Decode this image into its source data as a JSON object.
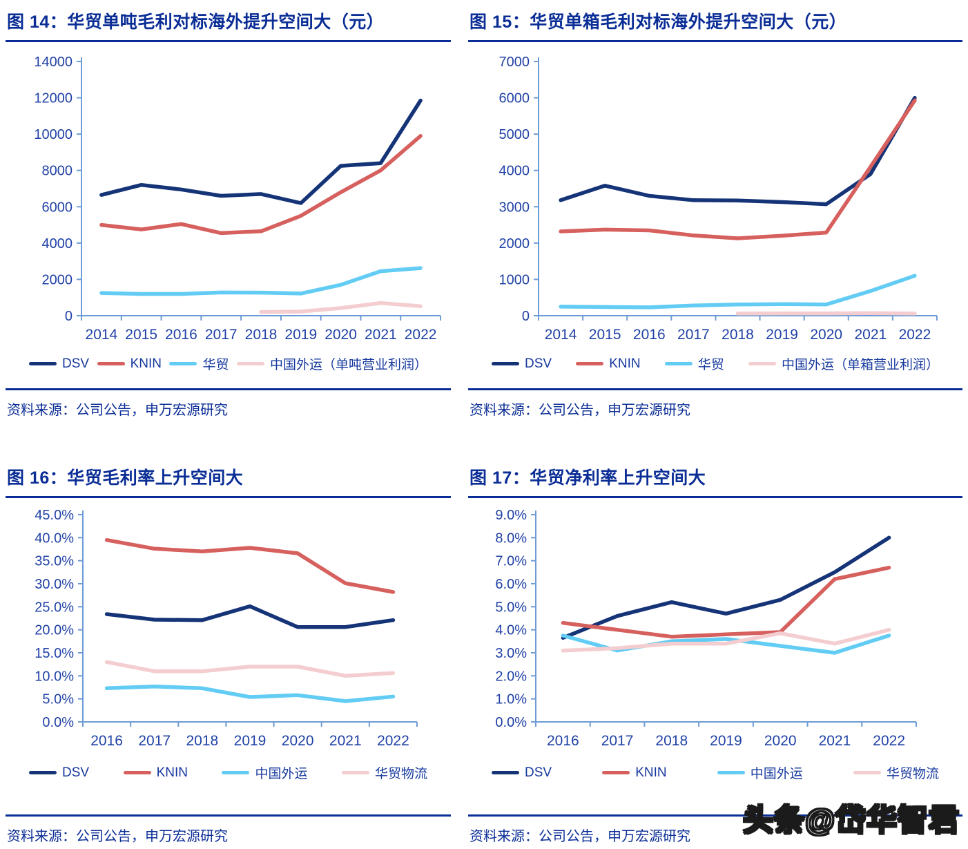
{
  "colors": {
    "navy": "#153377",
    "red": "#d6605d",
    "light_blue": "#62ccf4",
    "pink": "#f4cdd0",
    "axis": "#6d9bd5",
    "text_blue": "#0a2d96"
  },
  "watermark": "头条@岱华智君",
  "chart_data": [
    {
      "type": "line",
      "title": "图 14：华贸单吨毛利对标海外提升空间大（元）",
      "source": "资料来源：公司公告，申万宏源研究",
      "categories": [
        "2014",
        "2015",
        "2016",
        "2017",
        "2018",
        "2019",
        "2020",
        "2021",
        "2022"
      ],
      "ylim": [
        0,
        14000
      ],
      "ytick": 2000,
      "yfmt": "int",
      "grid": false,
      "legend_position": "bottom",
      "series": [
        {
          "id": "dsv",
          "name": "DSV",
          "color": "navy",
          "values": [
            6650,
            7200,
            6950,
            6600,
            6700,
            6200,
            8250,
            8400,
            11850
          ]
        },
        {
          "id": "knin",
          "name": "KNIN",
          "color": "red",
          "values": [
            5000,
            4750,
            5050,
            4550,
            4650,
            5500,
            6800,
            8000,
            9900
          ]
        },
        {
          "id": "huamao",
          "name": "华贸",
          "color": "light_blue",
          "values": [
            1250,
            1200,
            1200,
            1280,
            1270,
            1220,
            1700,
            2450,
            2620
          ]
        },
        {
          "id": "sinotrans",
          "name": "中国外运（单吨营业利润）",
          "color": "pink",
          "values": [
            null,
            null,
            null,
            null,
            200,
            230,
            420,
            700,
            520
          ]
        }
      ]
    },
    {
      "type": "line",
      "title": "图 15：华贸单箱毛利对标海外提升空间大（元）",
      "source": "资料来源：公司公告，申万宏源研究",
      "categories": [
        "2014",
        "2015",
        "2016",
        "2017",
        "2018",
        "2019",
        "2020",
        "2021",
        "2022"
      ],
      "ylim": [
        0,
        7000
      ],
      "ytick": 1000,
      "yfmt": "int",
      "grid": false,
      "legend_position": "bottom",
      "series": [
        {
          "id": "dsv",
          "name": "DSV",
          "color": "navy",
          "values": [
            3180,
            3580,
            3300,
            3180,
            3170,
            3130,
            3070,
            3900,
            6000
          ]
        },
        {
          "id": "knin",
          "name": "KNIN",
          "color": "red",
          "values": [
            2320,
            2370,
            2350,
            2210,
            2130,
            2200,
            2290,
            4100,
            5930
          ]
        },
        {
          "id": "huamao",
          "name": "华贸",
          "color": "light_blue",
          "values": [
            250,
            240,
            230,
            280,
            310,
            320,
            310,
            680,
            1100
          ]
        },
        {
          "id": "sinotrans",
          "name": "中国外运（单箱营业利润）",
          "color": "pink",
          "values": [
            null,
            null,
            null,
            null,
            60,
            65,
            65,
            70,
            60
          ]
        }
      ]
    },
    {
      "type": "line",
      "title": "图 16：华贸毛利率上升空间大",
      "source": "资料来源：公司公告，申万宏源研究",
      "categories": [
        "2016",
        "2017",
        "2018",
        "2019",
        "2020",
        "2021",
        "2022"
      ],
      "ylim": [
        0,
        45
      ],
      "ytick": 5,
      "yfmt": "pct",
      "grid": false,
      "legend_position": "bottom",
      "series": [
        {
          "id": "dsv",
          "name": "DSV",
          "color": "navy",
          "values": [
            23.4,
            22.2,
            22.1,
            25.1,
            20.6,
            20.6,
            22.1
          ]
        },
        {
          "id": "knin",
          "name": "KNIN",
          "color": "red",
          "values": [
            39.5,
            37.6,
            37.0,
            37.8,
            36.6,
            30.1,
            28.2
          ]
        },
        {
          "id": "sinotrans",
          "name": "中国外运",
          "color": "light_blue",
          "values": [
            7.3,
            7.7,
            7.3,
            5.4,
            5.8,
            4.5,
            5.5
          ]
        },
        {
          "id": "huamao-wuliu",
          "name": "华贸物流",
          "color": "pink",
          "values": [
            13.0,
            11.0,
            11.0,
            12.0,
            12.0,
            10.0,
            10.6
          ]
        }
      ]
    },
    {
      "type": "line",
      "title": "图 17：华贸净利率上升空间大",
      "source": "资料来源：公司公告，申万宏源研究",
      "categories": [
        "2016",
        "2017",
        "2018",
        "2019",
        "2020",
        "2021",
        "2022"
      ],
      "ylim": [
        0,
        9
      ],
      "ytick": 1,
      "yfmt": "pct",
      "grid": false,
      "legend_position": "bottom",
      "series": [
        {
          "id": "dsv",
          "name": "DSV",
          "color": "navy",
          "values": [
            3.65,
            4.6,
            5.2,
            4.7,
            5.3,
            6.5,
            8.0
          ]
        },
        {
          "id": "knin",
          "name": "KNIN",
          "color": "red",
          "values": [
            4.3,
            4.0,
            3.7,
            3.8,
            3.9,
            6.2,
            6.7
          ]
        },
        {
          "id": "sinotrans",
          "name": "中国外运",
          "color": "light_blue",
          "values": [
            3.75,
            3.1,
            3.5,
            3.6,
            3.3,
            3.0,
            3.75
          ]
        },
        {
          "id": "huamao-wuliu",
          "name": "华贸物流",
          "color": "pink",
          "values": [
            3.1,
            3.2,
            3.4,
            3.4,
            3.85,
            3.4,
            4.0
          ]
        }
      ]
    }
  ]
}
